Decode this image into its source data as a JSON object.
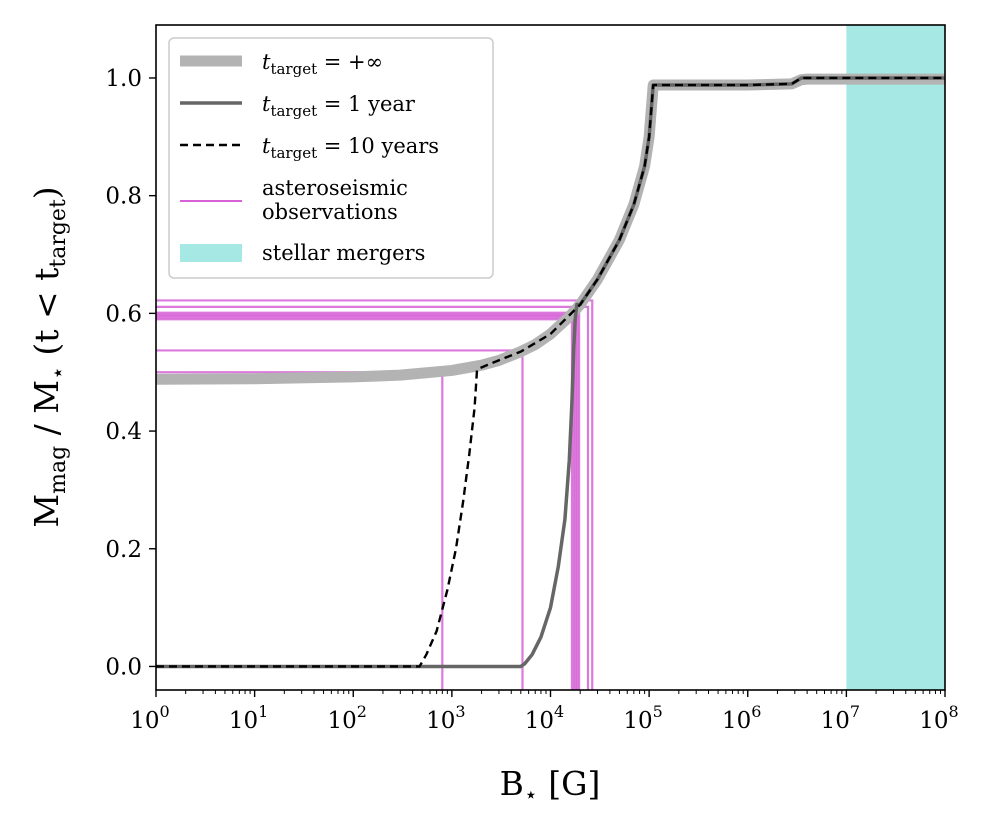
{
  "chart_data": {
    "type": "line",
    "xscale": "log",
    "xlabel": "B⋆ [G]",
    "ylabel": "Mmag / M⋆ (t < ttarget)",
    "xlim": [
      1,
      100000000
    ],
    "ylim": [
      -0.04,
      1.09
    ],
    "xticks": [
      1,
      10,
      100,
      1000,
      10000,
      100000,
      1000000,
      10000000,
      100000000
    ],
    "xtick_labels": [
      {
        "base": "10",
        "exp": "0"
      },
      {
        "base": "10",
        "exp": "1"
      },
      {
        "base": "10",
        "exp": "2"
      },
      {
        "base": "10",
        "exp": "3"
      },
      {
        "base": "10",
        "exp": "4"
      },
      {
        "base": "10",
        "exp": "5"
      },
      {
        "base": "10",
        "exp": "6"
      },
      {
        "base": "10",
        "exp": "7"
      },
      {
        "base": "10",
        "exp": "8"
      }
    ],
    "yticks": [
      0.0,
      0.2,
      0.4,
      0.6,
      0.8,
      1.0
    ],
    "ytick_labels": [
      "0.0",
      "0.2",
      "0.4",
      "0.6",
      "0.8",
      "1.0"
    ],
    "grid": false,
    "legend_position": "top-left",
    "legend": [
      {
        "label": "t_target = +∞",
        "style": "thick-gray"
      },
      {
        "label": "t_target = 1 year",
        "style": "dark-gray"
      },
      {
        "label": "t_target = 10 years",
        "style": "dashed-black"
      },
      {
        "label": "asteroseismic observations",
        "style": "magenta-line"
      },
      {
        "label": "stellar mergers",
        "style": "cyan-patch"
      }
    ],
    "series": [
      {
        "name": "t_target = +∞",
        "color": "#b3b3b3",
        "x": [
          1,
          10,
          100,
          300,
          1000,
          2000,
          3000,
          5000,
          7000,
          10000,
          15000,
          20000,
          30000,
          50000,
          70000,
          90000,
          100000,
          110000,
          150000,
          1000000,
          2800000,
          3500000,
          4000000,
          10000000,
          100000000
        ],
        "y": [
          0.488,
          0.489,
          0.492,
          0.495,
          0.503,
          0.512,
          0.52,
          0.535,
          0.547,
          0.565,
          0.592,
          0.615,
          0.658,
          0.725,
          0.785,
          0.85,
          0.9,
          0.988,
          0.988,
          0.988,
          0.99,
          0.997,
          0.998,
          0.998,
          0.998
        ]
      },
      {
        "name": "t_target = 1 year",
        "color": "#666666",
        "x": [
          1,
          10,
          100,
          1000,
          5000,
          5500,
          6500,
          8000,
          10000,
          12000,
          14000,
          15500,
          16500,
          17200,
          17800,
          18500,
          20000,
          30000,
          50000,
          70000,
          90000,
          100000,
          110000,
          150000,
          1000000,
          2800000,
          3500000,
          4000000,
          10000000,
          100000000
        ],
        "y": [
          0.0,
          0.0,
          0.0,
          0.0,
          0.0,
          0.005,
          0.02,
          0.05,
          0.1,
          0.17,
          0.25,
          0.35,
          0.45,
          0.54,
          0.59,
          0.615,
          0.615,
          0.658,
          0.725,
          0.785,
          0.85,
          0.9,
          0.988,
          0.988,
          0.988,
          0.99,
          1.0,
          1.0,
          1.0,
          1.0
        ]
      },
      {
        "name": "t_target = 10 years",
        "color": "#000000",
        "dashed": true,
        "x": [
          1,
          10,
          100,
          470,
          550,
          700,
          900,
          1100,
          1300,
          1500,
          1700,
          1800,
          2500,
          5000,
          10000,
          20000,
          30000,
          50000,
          70000,
          90000,
          100000,
          110000,
          150000,
          1000000,
          2800000,
          3500000,
          4000000,
          10000000,
          100000000
        ],
        "y": [
          0.0,
          0.0,
          0.0,
          0.0,
          0.02,
          0.06,
          0.13,
          0.2,
          0.28,
          0.36,
          0.44,
          0.505,
          0.515,
          0.535,
          0.565,
          0.615,
          0.658,
          0.725,
          0.785,
          0.85,
          0.9,
          0.988,
          0.988,
          0.988,
          0.99,
          1.0,
          1.0,
          1.0,
          1.0
        ]
      }
    ],
    "observations": [
      {
        "B": 800,
        "frac": 0.5
      },
      {
        "B": 5200,
        "frac": 0.537
      },
      {
        "B": 16500,
        "frac": 0.59
      },
      {
        "B": 17300,
        "frac": 0.593
      },
      {
        "B": 18000,
        "frac": 0.596
      },
      {
        "B": 18700,
        "frac": 0.598
      },
      {
        "B": 19500,
        "frac": 0.601
      },
      {
        "B": 24000,
        "frac": 0.611
      },
      {
        "B": 26500,
        "frac": 0.622
      }
    ],
    "mergers_range": [
      10000000,
      100000000
    ],
    "colors": {
      "infinity": "#b3b3b3",
      "one_year": "#666666",
      "ten_years": "#000000",
      "observations": "#d662d6",
      "mergers": "#a6e8e3"
    }
  }
}
